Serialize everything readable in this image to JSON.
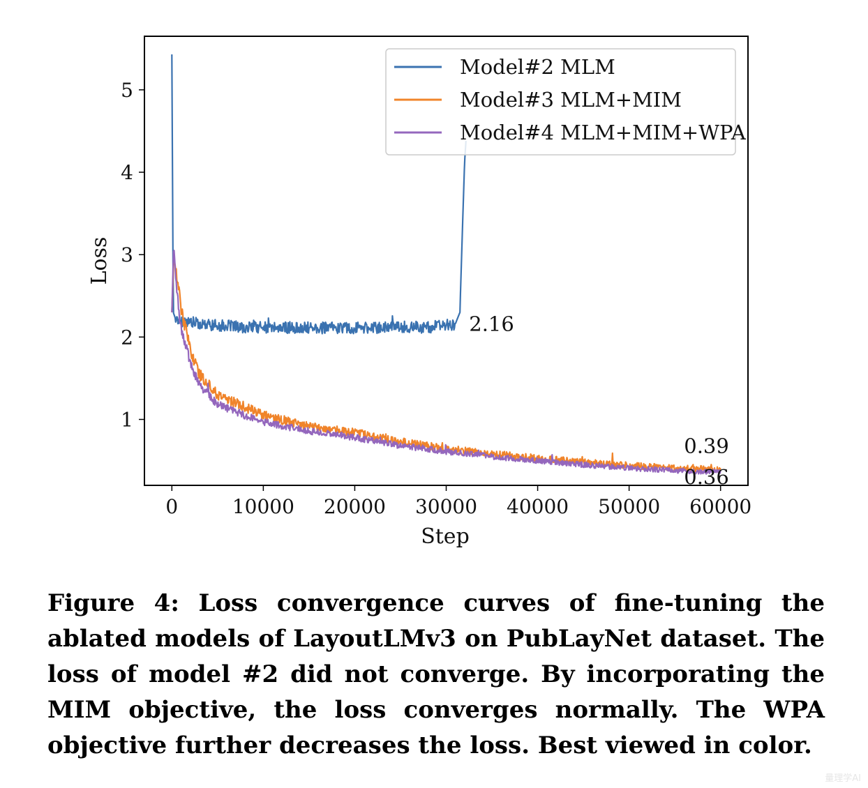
{
  "chart_data": {
    "type": "line",
    "xlabel": "Step",
    "ylabel": "Loss",
    "xlim": [
      -3000,
      63000
    ],
    "ylim": [
      0.2,
      5.65
    ],
    "xticks": [
      0,
      10000,
      20000,
      30000,
      40000,
      50000,
      60000
    ],
    "yticks": [
      1,
      2,
      3,
      4,
      5
    ],
    "xtick_labels": [
      "0",
      "10000",
      "20000",
      "30000",
      "40000",
      "50000",
      "60000"
    ],
    "ytick_labels": [
      "1",
      "2",
      "3",
      "4",
      "5"
    ],
    "legend_position": "top-right",
    "series": [
      {
        "name": "Model#2 MLM",
        "color": "#3a72b0",
        "x": [
          0,
          150,
          400,
          1000,
          2000,
          3000,
          5000,
          8000,
          10000,
          15000,
          20000,
          25000,
          28000,
          30000,
          31000,
          31500,
          31800,
          32000,
          32200
        ],
        "y": [
          5.43,
          2.3,
          2.22,
          2.2,
          2.18,
          2.16,
          2.14,
          2.12,
          2.12,
          2.11,
          2.11,
          2.12,
          2.12,
          2.14,
          2.16,
          2.3,
          3.4,
          4.1,
          4.45
        ],
        "noise": 0.045
      },
      {
        "name": "Model#3 MLM+MIM",
        "color": "#f0842a",
        "x": [
          0,
          200,
          500,
          1000,
          2000,
          3000,
          5000,
          8000,
          10000,
          15000,
          20000,
          25000,
          30000,
          35000,
          40000,
          45000,
          50000,
          55000,
          60000
        ],
        "y": [
          2.3,
          2.95,
          2.8,
          2.35,
          1.85,
          1.55,
          1.3,
          1.15,
          1.05,
          0.92,
          0.84,
          0.73,
          0.65,
          0.58,
          0.53,
          0.48,
          0.44,
          0.41,
          0.39
        ],
        "noise": 0.05
      },
      {
        "name": "Model#4 MLM+MIM+WPA",
        "color": "#9467bd",
        "x": [
          0,
          200,
          500,
          1000,
          2000,
          3000,
          5000,
          8000,
          10000,
          15000,
          20000,
          25000,
          30000,
          35000,
          40000,
          45000,
          50000,
          55000,
          60000
        ],
        "y": [
          2.3,
          3.12,
          2.6,
          2.1,
          1.7,
          1.42,
          1.18,
          1.05,
          0.97,
          0.86,
          0.78,
          0.68,
          0.61,
          0.55,
          0.5,
          0.45,
          0.41,
          0.38,
          0.36
        ],
        "noise": 0.04
      }
    ],
    "annotations": [
      {
        "text": "2.16",
        "x": 32500,
        "y": 2.16
      },
      {
        "text": "0.39",
        "x": 56000,
        "y": 0.68
      },
      {
        "text": "0.36",
        "x": 56000,
        "y": 0.3
      }
    ]
  },
  "caption": "Figure 4: Loss convergence curves of fine-tuning the ablated models of LayoutLMv3 on PubLayNet dataset. The loss of model #2 did not converge. By incorporating the MIM objective, the loss converges normally. The WPA objective further decreases the loss. Best viewed in color.",
  "watermark": "量理学AI"
}
